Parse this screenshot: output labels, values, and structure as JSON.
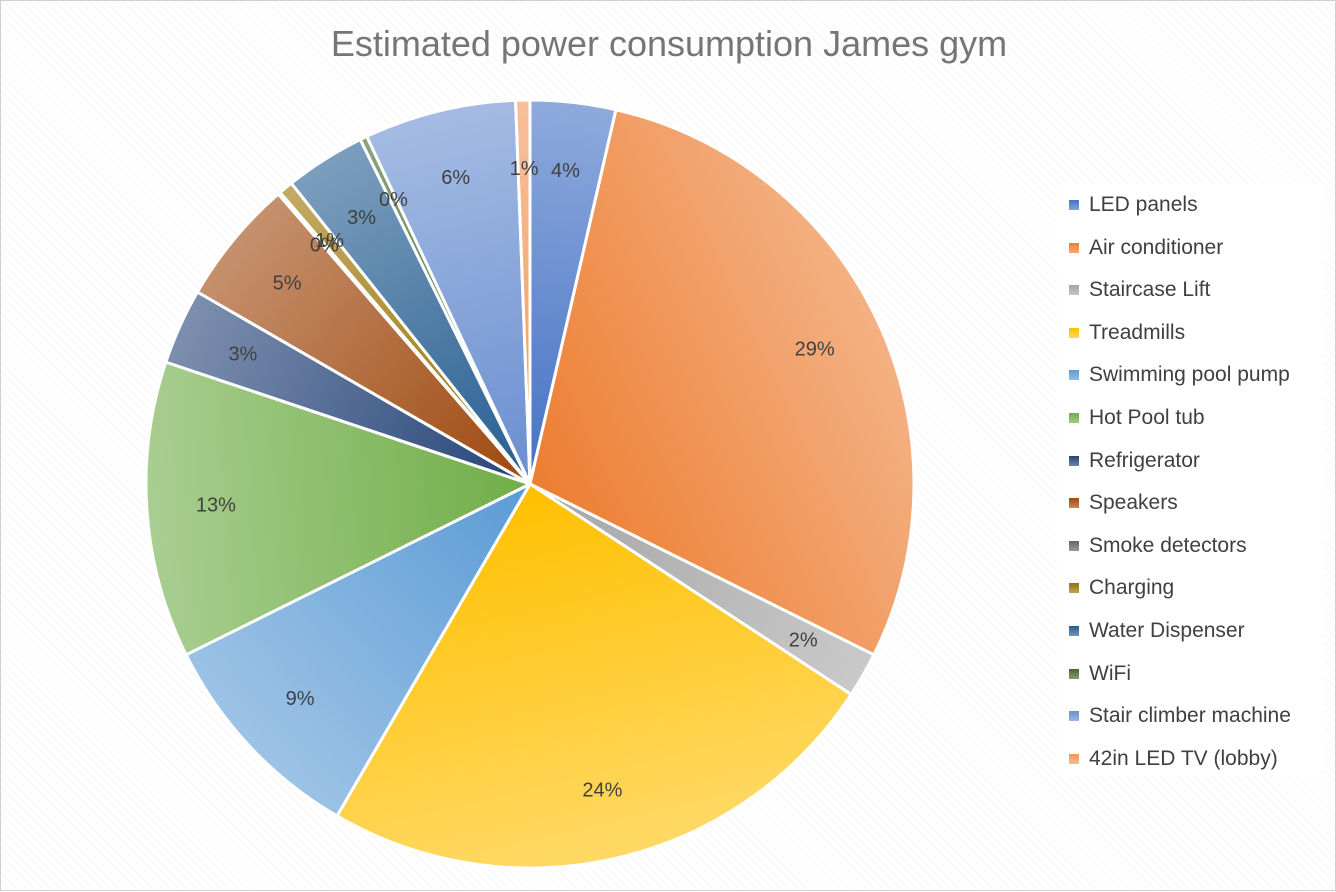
{
  "chart_data": {
    "type": "pie",
    "title": "Estimated power consumption James gym",
    "legend_position": "right",
    "slices": [
      {
        "name": "LED panels",
        "value": 3.6,
        "label": "4%",
        "color": "#4472C4"
      },
      {
        "name": "Air conditioner",
        "value": 28.8,
        "label": "29%",
        "color": "#ED7D31"
      },
      {
        "name": "Staircase Lift",
        "value": 1.9,
        "label": "2%",
        "color": "#A5A5A5"
      },
      {
        "name": "Treadmills",
        "value": 24.2,
        "label": "24%",
        "color": "#FFC000"
      },
      {
        "name": "Swimming pool pump",
        "value": 9.3,
        "label": "9%",
        "color": "#5B9BD5"
      },
      {
        "name": "Hot Pool tub",
        "value": 12.5,
        "label": "13%",
        "color": "#70AD47"
      },
      {
        "name": "Refrigerator",
        "value": 3.2,
        "label": "3%",
        "color": "#264478"
      },
      {
        "name": "Speakers",
        "value": 5.3,
        "label": "5%",
        "color": "#9E480E"
      },
      {
        "name": "Smoke detectors",
        "value": 0.1,
        "label": "0%",
        "color": "#636363"
      },
      {
        "name": "Charging",
        "value": 0.6,
        "label": "1%",
        "color": "#997300"
      },
      {
        "name": "Water Dispenser",
        "value": 3.4,
        "label": "3%",
        "color": "#255E91"
      },
      {
        "name": "WiFi",
        "value": 0.3,
        "label": "0%",
        "color": "#43682B"
      },
      {
        "name": "Stair climber machine",
        "value": 6.4,
        "label": "6%",
        "color": "#698ED0"
      },
      {
        "name": "42in LED TV (lobby)",
        "value": 0.6,
        "label": "1%",
        "color": "#F1975A"
      }
    ]
  }
}
